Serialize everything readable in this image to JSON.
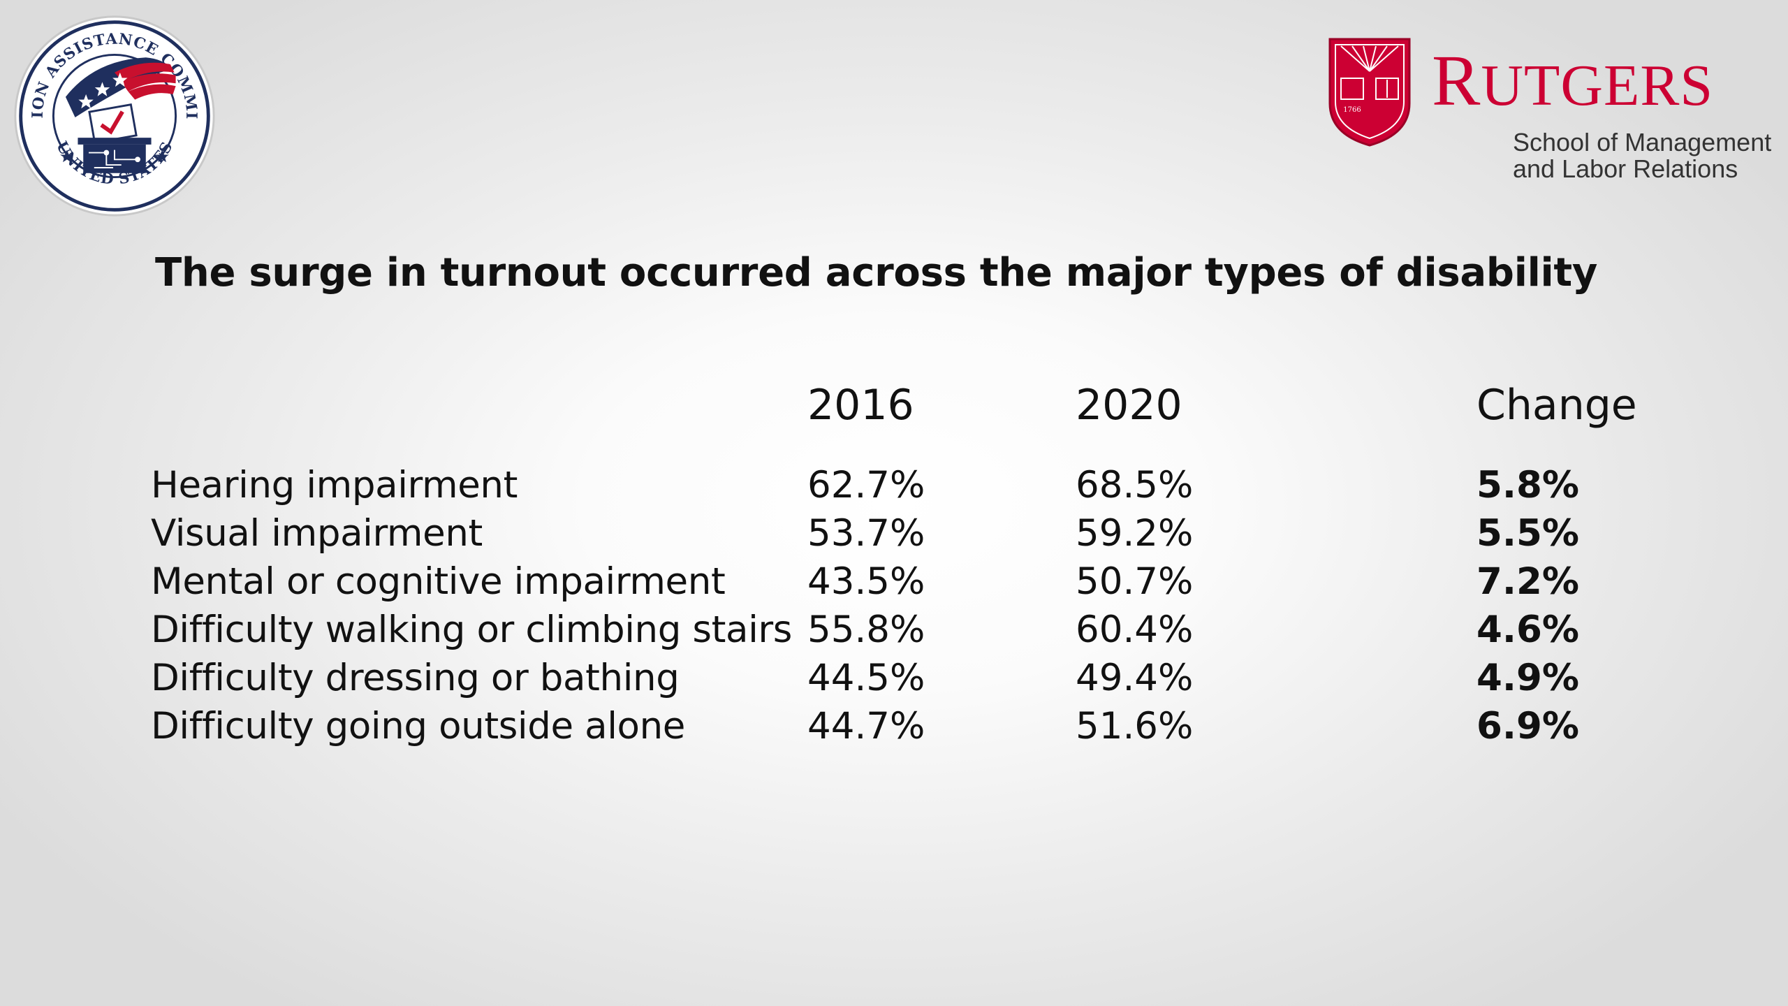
{
  "slide": {
    "title": "The surge in turnout occurred across the major types of disability"
  },
  "logos": {
    "eac": {
      "ring_top_text": "ELECTION ASSISTANCE COMMISSION",
      "ring_bottom_text": "UNITED STATES",
      "icon": "ballot-box-seal-icon"
    },
    "rutgers": {
      "wordmark": "RUTGERS",
      "school_line_1": "School of Management",
      "school_line_2": "and Labor Relations",
      "shield_year": "1766",
      "brand_color": "#cc0033",
      "icon": "rutgers-shield-icon"
    }
  },
  "table": {
    "columns": [
      "",
      "2016",
      "2020",
      "Change"
    ],
    "rows": [
      {
        "label": "Hearing impairment",
        "y2016": "62.7%",
        "y2020": "68.5%",
        "change": "5.8%"
      },
      {
        "label": "Visual impairment",
        "y2016": "53.7%",
        "y2020": "59.2%",
        "change": "5.5%"
      },
      {
        "label": "Mental or cognitive impairment",
        "y2016": "43.5%",
        "y2020": "50.7%",
        "change": "7.2%"
      },
      {
        "label": "Difficulty walking or climbing stairs",
        "y2016": "55.8%",
        "y2020": "60.4%",
        "change": "4.6%"
      },
      {
        "label": "Difficulty dressing or bathing",
        "y2016": "44.5%",
        "y2020": "49.4%",
        "change": "4.9%"
      },
      {
        "label": "Difficulty going outside alone",
        "y2016": "44.7%",
        "y2020": "51.6%",
        "change": "6.9%"
      }
    ]
  }
}
